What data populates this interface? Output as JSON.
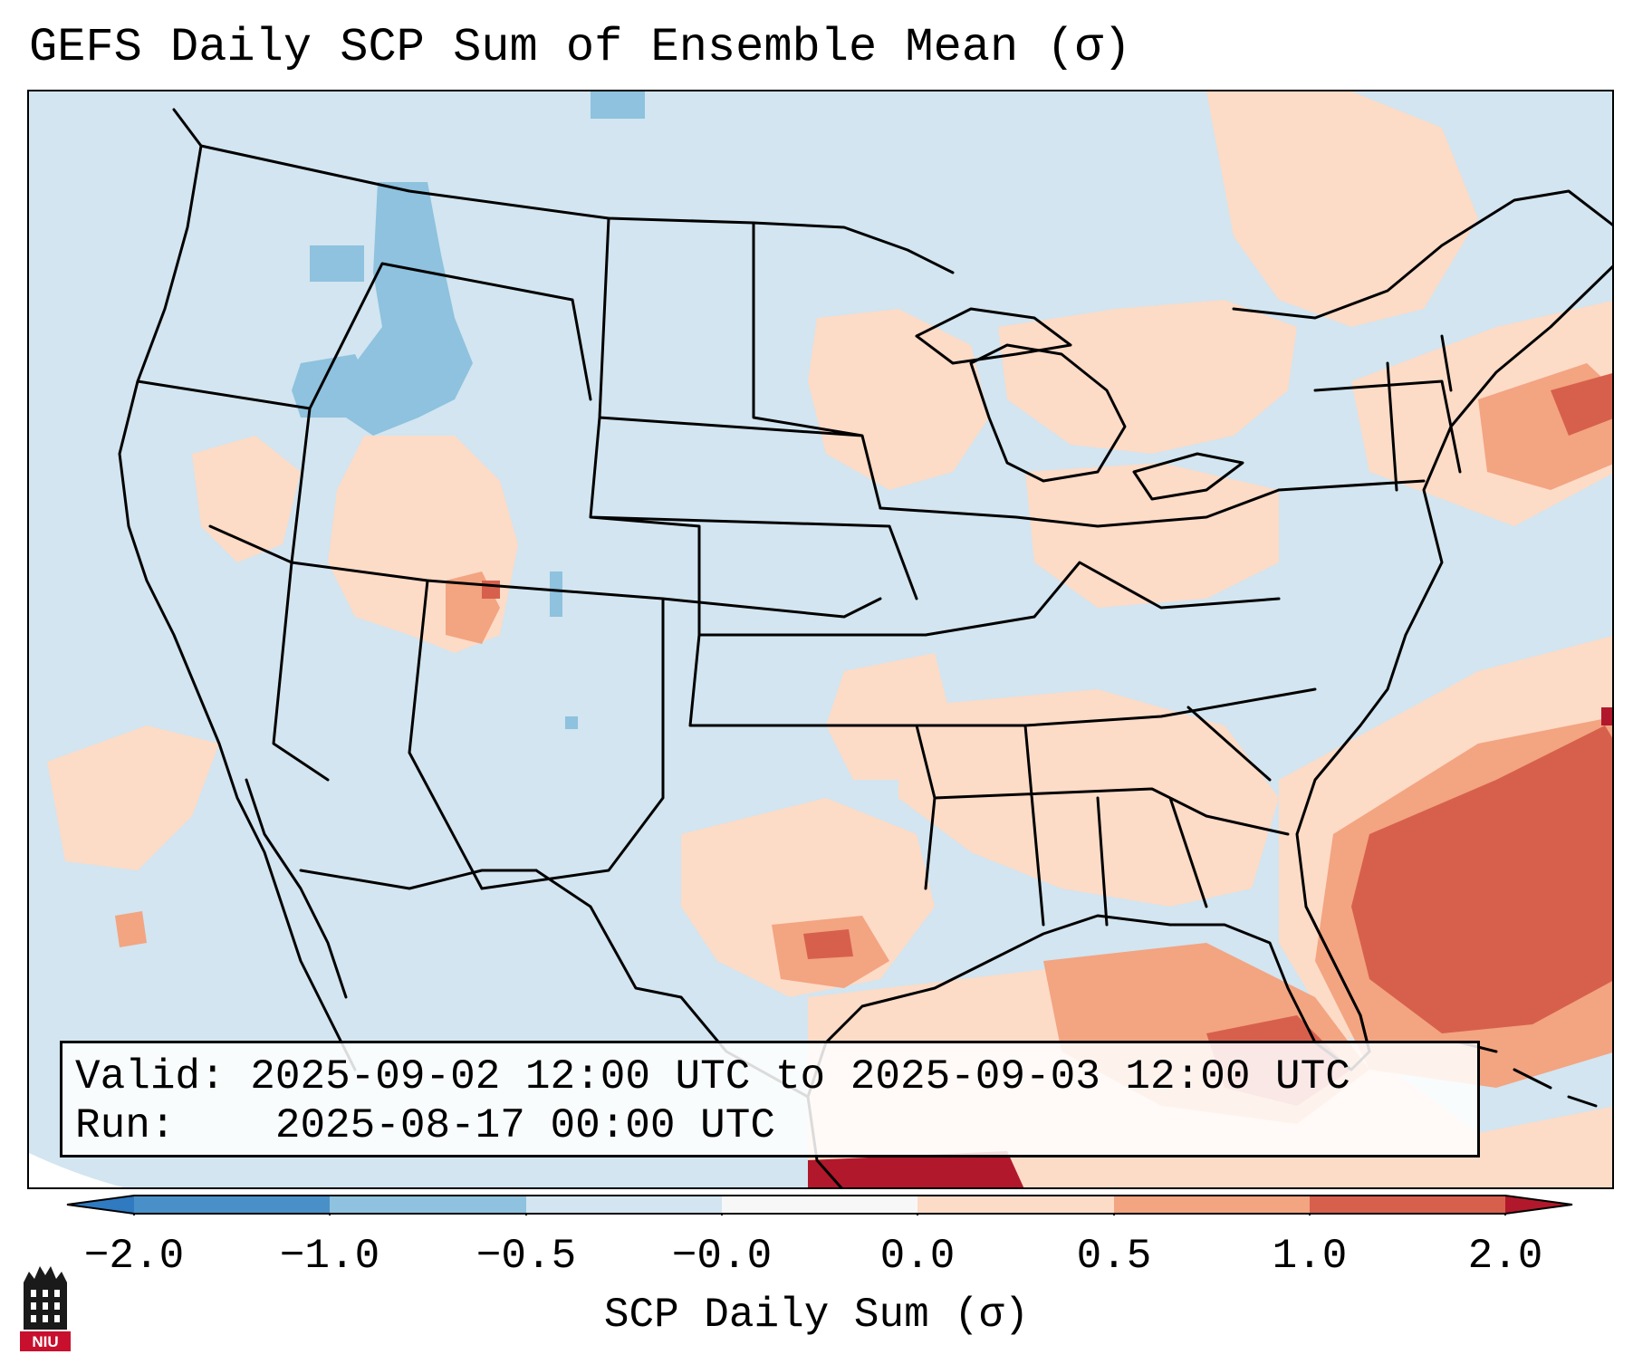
{
  "title": "GEFS Daily SCP Sum of Ensemble Mean (σ)",
  "info": {
    "valid_label": "Valid:",
    "valid_value": "2025-09-02 12:00 UTC to 2025-09-03 12:00 UTC",
    "run_label": "Run:",
    "run_value": "2025-08-17 00:00 UTC"
  },
  "colorbar": {
    "label": "SCP Daily Sum (σ)",
    "ticks": [
      "−2.0",
      "−1.0",
      "−0.5",
      "−0.0",
      "0.0",
      "0.5",
      "1.0",
      "2.0"
    ],
    "bins": [
      {
        "range": "< -2.0",
        "color": "#2f7ac0"
      },
      {
        "range": "-2.0 to -1.0",
        "color": "#4a90c8"
      },
      {
        "range": "-1.0 to -0.5",
        "color": "#8ec2de"
      },
      {
        "range": "-0.5 to -0.0",
        "color": "#d2e5f0"
      },
      {
        "range": "-0.0 to 0.0",
        "color": "#f7f7f7"
      },
      {
        "range": "0.0 to 0.5",
        "color": "#fcdbc7"
      },
      {
        "range": "0.5 to 1.0",
        "color": "#f3a481"
      },
      {
        "range": "1.0 to 2.0",
        "color": "#d7604d"
      },
      {
        "range": "> 2.0",
        "color": "#b2182b"
      }
    ]
  },
  "colors": {
    "background_field": "#d2e5f0",
    "light_negative": "#8ec2de",
    "light_positive": "#fcdbc7",
    "medium_positive": "#f3a481",
    "strong_positive": "#d7604d",
    "extreme_positive": "#b2182b"
  },
  "logo": {
    "text": "NIU",
    "icon": "niu-building-icon"
  }
}
